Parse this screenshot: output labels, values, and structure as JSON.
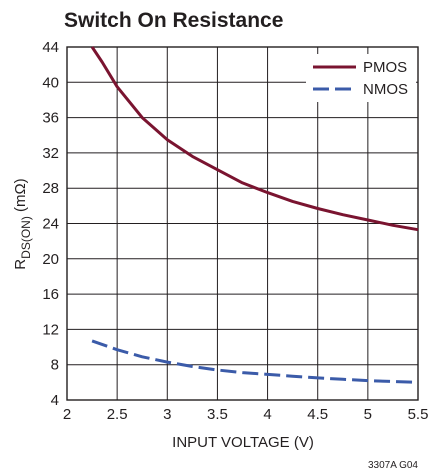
{
  "chart_data": {
    "type": "line",
    "title": "Switch On Resistance",
    "xlabel": "INPUT VOLTAGE (V)",
    "ylabel_main": "R",
    "ylabel_sub": "DS(ON)",
    "ylabel_unit": " (mΩ)",
    "xlim": [
      2,
      5.5
    ],
    "ylim": [
      4,
      44
    ],
    "x_ticks": [
      2,
      2.5,
      3,
      3.5,
      4,
      4.5,
      5,
      5.5
    ],
    "x_tick_labels": [
      "2",
      "2.5",
      "3",
      "3.5",
      "4",
      "4.5",
      "5",
      "5.5"
    ],
    "y_ticks": [
      4,
      8,
      12,
      16,
      20,
      24,
      28,
      32,
      36,
      40,
      44
    ],
    "y_tick_labels": [
      "4",
      "8",
      "12",
      "16",
      "20",
      "24",
      "28",
      "32",
      "36",
      "40",
      "44"
    ],
    "grid": true,
    "legend_position": "top-right",
    "series": [
      {
        "name": "PMOS",
        "color": "#7a1430",
        "dash": "solid",
        "x": [
          2.25,
          2.35,
          2.5,
          2.75,
          3.0,
          3.25,
          3.5,
          3.75,
          4.0,
          4.25,
          4.5,
          4.75,
          5.0,
          5.25,
          5.5
        ],
        "y": [
          44.0,
          42.3,
          39.5,
          36.0,
          33.5,
          31.6,
          30.1,
          28.6,
          27.5,
          26.5,
          25.7,
          25.0,
          24.4,
          23.8,
          23.3
        ]
      },
      {
        "name": "NMOS",
        "color": "#3b5ba9",
        "dash": "dashed",
        "x": [
          2.25,
          2.5,
          2.75,
          3.0,
          3.25,
          3.5,
          3.75,
          4.0,
          4.25,
          4.5,
          4.75,
          5.0,
          5.25,
          5.5
        ],
        "y": [
          10.7,
          9.7,
          8.9,
          8.3,
          7.8,
          7.4,
          7.1,
          6.9,
          6.7,
          6.5,
          6.35,
          6.2,
          6.1,
          6.0
        ]
      }
    ],
    "figure_code": "3307A G04"
  }
}
